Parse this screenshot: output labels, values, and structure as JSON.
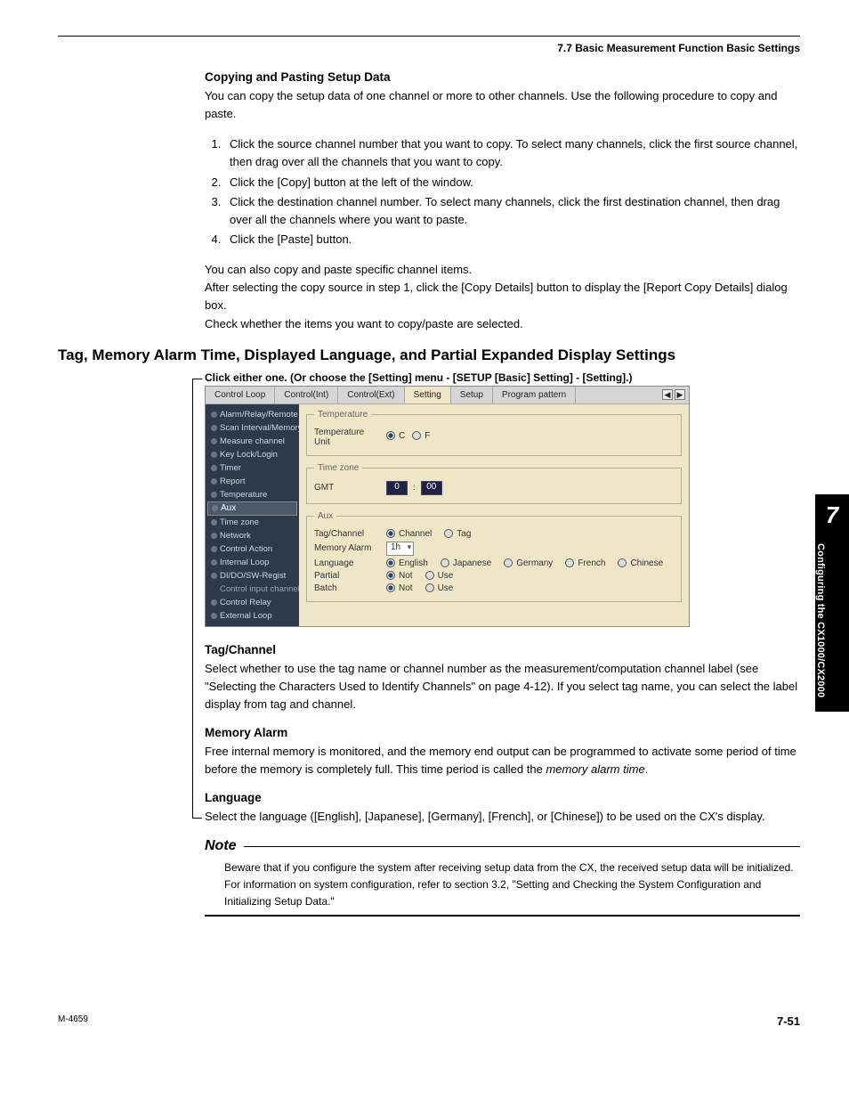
{
  "header": {
    "section": "7.7  Basic Measurement Function Basic Settings"
  },
  "copy": {
    "title": "Copying and Pasting Setup Data",
    "intro": "You can copy the setup data of one channel or more to other channels.  Use the following procedure to copy and paste.",
    "steps": [
      "Click the source channel number that you want to copy.  To select many channels, click the first source channel, then drag over all the channels that you want to copy.",
      "Click the [Copy] button at the left of the window.",
      "Click the destination channel number.  To select many channels, click the first destination channel, then drag over all the channels where you want to paste.",
      "Click the [Paste] button."
    ],
    "p2a": "You can also copy and paste specific channel items.",
    "p2b": "After selecting the copy source in step 1, click the [Copy Details] button to display the [Report Copy Details] dialog box.",
    "p2c": "Check whether the items you want to copy/paste are selected."
  },
  "h2": "Tag, Memory Alarm Time, Displayed Language, and Partial Expanded Display Settings",
  "caption": "Click either one. (Or choose the [Setting] menu - [SETUP [Basic] Setting] - [Setting].)",
  "shot": {
    "tabs": [
      "Control Loop",
      "Control(Int)",
      "Control(Ext)",
      "Setting",
      "Setup",
      "Program pattern"
    ],
    "active_tab": 3,
    "sidebar": [
      {
        "label": "Alarm/Relay/Remote"
      },
      {
        "label": "Scan Interval/Memory"
      },
      {
        "label": "Measure channel"
      },
      {
        "label": "Key Lock/Login"
      },
      {
        "label": "Timer"
      },
      {
        "label": "Report"
      },
      {
        "label": "Temperature"
      },
      {
        "label": "Aux",
        "sel": true
      },
      {
        "label": "Time zone"
      },
      {
        "label": "Network"
      },
      {
        "label": "Control Action"
      },
      {
        "label": "Internal Loop"
      },
      {
        "label": "DI/DO/SW-Regist"
      },
      {
        "label": "Control input channel",
        "sub": true
      },
      {
        "label": "Control Relay"
      },
      {
        "label": "External Loop"
      }
    ],
    "groups": {
      "temp": {
        "legend": "Temperature",
        "label": "Temperature Unit",
        "opts": [
          "C",
          "F"
        ],
        "sel": 0
      },
      "tz": {
        "legend": "Time zone",
        "label": "GMT",
        "v1": "0",
        "v2": "00"
      },
      "aux": {
        "legend": "Aux",
        "rows": [
          {
            "label": "Tag/Channel",
            "type": "radio",
            "opts": [
              "Channel",
              "Tag"
            ],
            "sel": 0
          },
          {
            "label": "Memory Alarm",
            "type": "select",
            "value": "1h"
          },
          {
            "label": "Language",
            "type": "radio",
            "opts": [
              "English",
              "Japanese",
              "Germany",
              "French",
              "Chinese"
            ],
            "sel": 0
          },
          {
            "label": "Partial",
            "type": "radio",
            "opts": [
              "Not",
              "Use"
            ],
            "sel": 0
          },
          {
            "label": "Batch",
            "type": "radio",
            "opts": [
              "Not",
              "Use"
            ],
            "sel": 0
          }
        ]
      }
    }
  },
  "sections": {
    "tag": {
      "h": "Tag/Channel",
      "p": "Select whether to use the tag name or channel number as the measurement/computation channel label (see \"Selecting the Characters Used to Identify Channels\" on page 4-12). If you select tag name, you can select the label display from tag and channel."
    },
    "mem": {
      "h": "Memory Alarm",
      "p": "Free internal memory is monitored, and the memory end output can be programmed to activate some period of time before the memory is completely full.  This time period is called the ",
      "em": "memory alarm time",
      "tail": "."
    },
    "lang": {
      "h": "Language",
      "p": "Select the language ([English], [Japanese], [Germany], [French], or [Chinese]) to be used on the CX's display."
    }
  },
  "note": {
    "h": "Note",
    "body": "Beware that if you configure the system after receiving setup data from the CX, the received setup data will be initialized. For information on system configuration, refer to section 3.2, \"Setting and Checking the System Configuration and Initializing Setup Data.\""
  },
  "sidetab": {
    "num": "7",
    "text": "Configuring the CX1000/CX2000"
  },
  "footer": {
    "left": "M-4659",
    "right": "7-51"
  }
}
